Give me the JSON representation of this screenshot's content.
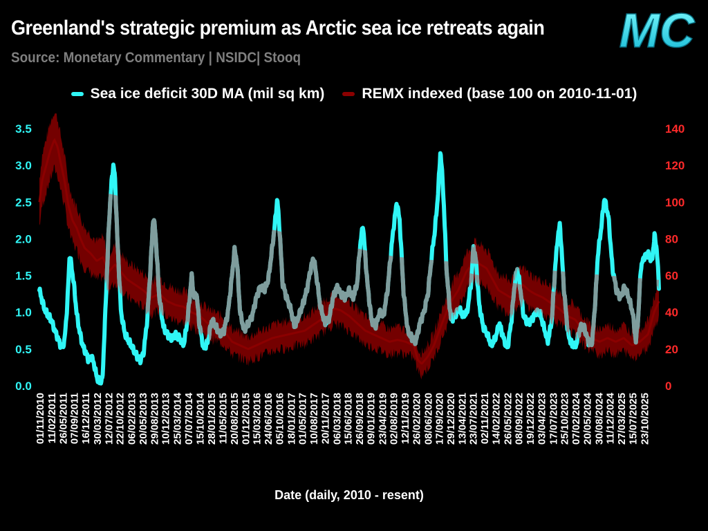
{
  "header": {
    "title": "Greenland's strategic premium as Arctic sea ice retreats again",
    "subtitle": "Source: Monetary Commentary | NSIDC| Stooq",
    "logo_text": "MC"
  },
  "colors": {
    "background": "#000000",
    "ice": "#30f6f6",
    "remx": "#8b0000",
    "remx_band": "#7a0000",
    "overlap": "#8d8d8d",
    "left_axis": "#30f6f6",
    "right_axis": "#ff2a2a"
  },
  "chart_data": {
    "type": "line",
    "title": "Greenland's strategic premium as Arctic sea ice retreats again",
    "xlabel": "Date (daily, 2010 - resent)",
    "y_left": {
      "label": "Sea ice deficit 30D MA (mil sq km)",
      "lim": [
        0,
        3.5
      ],
      "ticks": [
        "0.0",
        "0.5",
        "1.0",
        "1.5",
        "2.0",
        "2.5",
        "3.0",
        "3.5"
      ]
    },
    "y_right": {
      "label": "REMX indexed (base 100 on 2010-11-01)",
      "lim": [
        0,
        140
      ],
      "ticks": [
        "0",
        "20",
        "40",
        "60",
        "80",
        "100",
        "120",
        "140"
      ]
    },
    "x_range": [
      2010.83,
      2026.17
    ],
    "x_ticks": [
      {
        "label": "01/11/2010",
        "t": 2010.83
      },
      {
        "label": "11/02/2011",
        "t": 2011.12
      },
      {
        "label": "26/05/2011",
        "t": 2011.4
      },
      {
        "label": "07/09/2011",
        "t": 2011.68
      },
      {
        "label": "16/12/2011",
        "t": 2011.96
      },
      {
        "label": "30/03/2012",
        "t": 2012.25
      },
      {
        "label": "12/07/2012",
        "t": 2012.53
      },
      {
        "label": "22/10/2012",
        "t": 2012.81
      },
      {
        "label": "06/02/2013",
        "t": 2013.1
      },
      {
        "label": "20/05/2013",
        "t": 2013.38
      },
      {
        "label": "29/08/2013",
        "t": 2013.66
      },
      {
        "label": "10/12/2013",
        "t": 2013.94
      },
      {
        "label": "25/03/2014",
        "t": 2014.23
      },
      {
        "label": "07/07/2014",
        "t": 2014.51
      },
      {
        "label": "15/10/2014",
        "t": 2014.79
      },
      {
        "label": "28/01/2015",
        "t": 2015.08
      },
      {
        "label": "11/05/2015",
        "t": 2015.36
      },
      {
        "label": "20/08/2015",
        "t": 2015.64
      },
      {
        "label": "01/12/2015",
        "t": 2015.92
      },
      {
        "label": "15/03/2016",
        "t": 2016.2
      },
      {
        "label": "24/06/2016",
        "t": 2016.48
      },
      {
        "label": "05/10/2016",
        "t": 2016.76
      },
      {
        "label": "18/01/2017",
        "t": 2017.05
      },
      {
        "label": "01/05/2017",
        "t": 2017.33
      },
      {
        "label": "10/08/2017",
        "t": 2017.61
      },
      {
        "label": "20/11/2017",
        "t": 2017.89
      },
      {
        "label": "06/03/2018",
        "t": 2018.18
      },
      {
        "label": "15/06/2018",
        "t": 2018.46
      },
      {
        "label": "26/09/2018",
        "t": 2018.74
      },
      {
        "label": "09/01/2019",
        "t": 2019.02
      },
      {
        "label": "23/04/2019",
        "t": 2019.31
      },
      {
        "label": "02/08/2019",
        "t": 2019.59
      },
      {
        "label": "12/11/2019",
        "t": 2019.87
      },
      {
        "label": "26/02/2020",
        "t": 2020.15
      },
      {
        "label": "08/06/2020",
        "t": 2020.44
      },
      {
        "label": "17/09/2020",
        "t": 2020.72
      },
      {
        "label": "29/12/2020",
        "t": 2021.0
      },
      {
        "label": "13/04/2021",
        "t": 2021.28
      },
      {
        "label": "23/07/2021",
        "t": 2021.56
      },
      {
        "label": "02/11/2021",
        "t": 2021.84
      },
      {
        "label": "14/02/2022",
        "t": 2022.12
      },
      {
        "label": "26/05/2022",
        "t": 2022.41
      },
      {
        "label": "08/09/2022",
        "t": 2022.69
      },
      {
        "label": "19/12/2022",
        "t": 2022.97
      },
      {
        "label": "03/04/2023",
        "t": 2023.25
      },
      {
        "label": "17/07/2023",
        "t": 2023.54
      },
      {
        "label": "25/10/2023",
        "t": 2023.82
      },
      {
        "label": "07/02/2024",
        "t": 2024.1
      },
      {
        "label": "20/05/2024",
        "t": 2024.38
      },
      {
        "label": "30/08/2024",
        "t": 2024.67
      },
      {
        "label": "11/12/2024",
        "t": 2024.95
      },
      {
        "label": "27/03/2025",
        "t": 2025.23
      },
      {
        "label": "15/07/2025",
        "t": 2025.51
      },
      {
        "label": "23/10/2025",
        "t": 2025.8
      }
    ],
    "series": [
      {
        "name": "Sea ice deficit 30D MA (mil sq km)",
        "axis": "left",
        "x": [
          2010.83,
          2010.95,
          2011.05,
          2011.12,
          2011.18,
          2011.25,
          2011.32,
          2011.38,
          2011.45,
          2011.52,
          2011.58,
          2011.63,
          2011.68,
          2011.75,
          2011.82,
          2011.9,
          2011.98,
          2012.05,
          2012.12,
          2012.18,
          2012.26,
          2012.33,
          2012.39,
          2012.44,
          2012.5,
          2012.56,
          2012.62,
          2012.66,
          2012.7,
          2012.76,
          2012.85,
          2012.95,
          2013.05,
          2013.15,
          2013.25,
          2013.33,
          2013.41,
          2013.5,
          2013.58,
          2013.65,
          2013.7,
          2013.8,
          2013.9,
          2014.0,
          2014.1,
          2014.2,
          2014.3,
          2014.4,
          2014.5,
          2014.6,
          2014.66,
          2014.72,
          2014.8,
          2014.9,
          2015.0,
          2015.1,
          2015.2,
          2015.3,
          2015.4,
          2015.5,
          2015.6,
          2015.66,
          2015.72,
          2015.8,
          2015.9,
          2016.0,
          2016.1,
          2016.2,
          2016.3,
          2016.4,
          2016.5,
          2016.6,
          2016.66,
          2016.72,
          2016.78,
          2016.85,
          2016.95,
          2017.05,
          2017.15,
          2017.25,
          2017.35,
          2017.45,
          2017.55,
          2017.62,
          2017.7,
          2017.78,
          2017.9,
          2018.0,
          2018.1,
          2018.2,
          2018.3,
          2018.4,
          2018.5,
          2018.6,
          2018.7,
          2018.76,
          2018.84,
          2018.95,
          2019.05,
          2019.15,
          2019.25,
          2019.35,
          2019.45,
          2019.55,
          2019.62,
          2019.68,
          2019.75,
          2019.85,
          2019.95,
          2020.05,
          2020.15,
          2020.25,
          2020.35,
          2020.45,
          2020.55,
          2020.62,
          2020.7,
          2020.76,
          2020.82,
          2020.92,
          2021.02,
          2021.12,
          2021.22,
          2021.32,
          2021.42,
          2021.52,
          2021.58,
          2021.64,
          2021.72,
          2021.82,
          2021.92,
          2022.02,
          2022.12,
          2022.22,
          2022.32,
          2022.42,
          2022.52,
          2022.6,
          2022.66,
          2022.72,
          2022.82,
          2022.92,
          2023.02,
          2023.12,
          2023.22,
          2023.32,
          2023.42,
          2023.52,
          2023.6,
          2023.66,
          2023.72,
          2023.82,
          2023.92,
          2024.02,
          2024.12,
          2024.22,
          2024.32,
          2024.42,
          2024.52,
          2024.6,
          2024.66,
          2024.72,
          2024.82,
          2024.92,
          2025.02,
          2025.12,
          2025.22,
          2025.32,
          2025.42,
          2025.52,
          2025.6,
          2025.66,
          2025.72,
          2025.8,
          2025.9,
          2026.0,
          2026.06,
          2026.12,
          2026.17
        ],
        "values": [
          1.3,
          1.05,
          0.95,
          0.9,
          0.8,
          0.7,
          0.6,
          0.52,
          0.6,
          1.1,
          1.8,
          1.6,
          1.4,
          1.0,
          0.75,
          0.55,
          0.45,
          0.35,
          0.4,
          0.3,
          0.1,
          0.05,
          0.08,
          0.7,
          1.5,
          2.3,
          2.8,
          3.0,
          2.85,
          2.0,
          1.0,
          0.7,
          0.6,
          0.5,
          0.4,
          0.35,
          0.45,
          0.9,
          1.6,
          2.3,
          2.1,
          1.2,
          0.8,
          0.7,
          0.65,
          0.7,
          0.65,
          0.55,
          0.9,
          1.5,
          1.2,
          1.25,
          0.8,
          0.5,
          0.6,
          0.9,
          0.8,
          0.7,
          0.75,
          1.0,
          1.5,
          1.85,
          1.7,
          1.0,
          0.75,
          0.85,
          0.95,
          1.2,
          1.35,
          1.3,
          1.45,
          1.9,
          2.2,
          2.55,
          2.1,
          1.4,
          1.2,
          1.05,
          0.8,
          0.95,
          1.1,
          1.3,
          1.6,
          1.75,
          1.45,
          1.1,
          0.85,
          0.9,
          1.2,
          1.35,
          1.25,
          1.2,
          1.3,
          1.2,
          1.4,
          1.85,
          2.2,
          1.4,
          0.9,
          0.8,
          1.0,
          0.95,
          1.3,
          1.9,
          2.25,
          2.5,
          2.25,
          1.25,
          0.75,
          0.65,
          0.6,
          0.85,
          1.0,
          1.25,
          1.8,
          2.1,
          2.6,
          3.2,
          2.75,
          1.5,
          0.9,
          0.95,
          1.05,
          0.95,
          1.0,
          1.4,
          1.9,
          1.7,
          1.1,
          0.8,
          0.7,
          0.55,
          0.65,
          0.85,
          0.65,
          0.5,
          0.9,
          1.4,
          1.6,
          1.4,
          0.95,
          0.85,
          0.9,
          1.0,
          1.0,
          0.8,
          0.6,
          0.9,
          1.6,
          2.0,
          2.2,
          1.3,
          0.7,
          0.55,
          0.55,
          0.8,
          0.8,
          0.6,
          0.6,
          1.2,
          1.8,
          2.05,
          2.55,
          2.3,
          1.6,
          1.3,
          1.2,
          1.35,
          1.2,
          1.0,
          0.6,
          0.95,
          1.6,
          1.75,
          1.8,
          1.7,
          2.05,
          1.85,
          1.35
        ]
      },
      {
        "name": "REMX indexed (base 100 on 2010-11-01)",
        "axis": "right",
        "x": [
          2010.83,
          2010.9,
          2011.0,
          2011.1,
          2011.2,
          2011.28,
          2011.35,
          2011.45,
          2011.55,
          2011.65,
          2011.75,
          2011.85,
          2011.95,
          2012.1,
          2012.25,
          2012.4,
          2012.55,
          2012.7,
          2012.85,
          2013.0,
          2013.2,
          2013.4,
          2013.6,
          2013.8,
          2014.0,
          2014.2,
          2014.4,
          2014.6,
          2014.8,
          2015.0,
          2015.2,
          2015.4,
          2015.6,
          2015.8,
          2016.0,
          2016.2,
          2016.4,
          2016.6,
          2016.8,
          2017.0,
          2017.2,
          2017.4,
          2017.6,
          2017.8,
          2018.0,
          2018.15,
          2018.3,
          2018.5,
          2018.7,
          2018.9,
          2019.1,
          2019.3,
          2019.5,
          2019.7,
          2019.9,
          2020.1,
          2020.2,
          2020.3,
          2020.45,
          2020.6,
          2020.8,
          2021.0,
          2021.2,
          2021.4,
          2021.6,
          2021.75,
          2021.9,
          2022.05,
          2022.2,
          2022.35,
          2022.5,
          2022.65,
          2022.8,
          2022.95,
          2023.1,
          2023.3,
          2023.5,
          2023.7,
          2023.9,
          2024.1,
          2024.3,
          2024.5,
          2024.7,
          2024.9,
          2025.1,
          2025.3,
          2025.5,
          2025.7,
          2025.9,
          2026.05,
          2026.17
        ],
        "values": [
          100,
          112,
          120,
          128,
          134,
          130,
          122,
          112,
          98,
          90,
          86,
          80,
          75,
          72,
          68,
          70,
          62,
          66,
          62,
          58,
          55,
          52,
          48,
          50,
          46,
          44,
          43,
          40,
          38,
          34,
          32,
          30,
          24,
          22,
          20,
          22,
          24,
          26,
          27,
          28,
          29,
          30,
          33,
          36,
          40,
          42,
          41,
          38,
          34,
          30,
          28,
          26,
          24,
          25,
          24,
          22,
          14,
          12,
          16,
          22,
          34,
          45,
          52,
          62,
          68,
          66,
          64,
          58,
          52,
          50,
          48,
          52,
          55,
          52,
          50,
          48,
          45,
          42,
          38,
          36,
          30,
          26,
          24,
          26,
          24,
          26,
          22,
          24,
          28,
          40,
          46
        ]
      }
    ]
  }
}
